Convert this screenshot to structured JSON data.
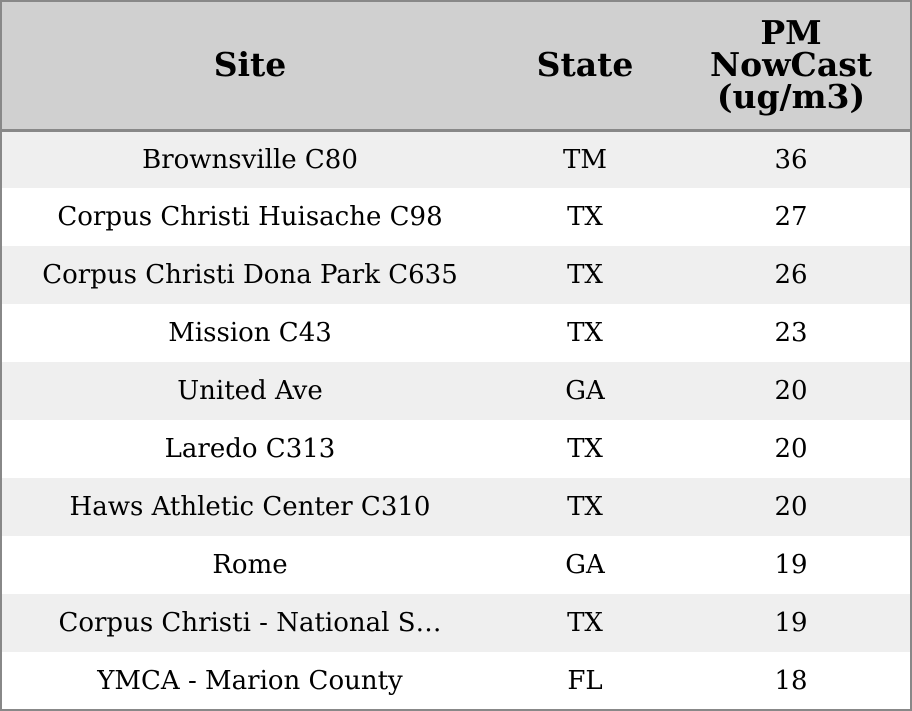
{
  "chart_data": {
    "type": "table",
    "columns": [
      "Site",
      "State",
      "PM NowCast (ug/m3)"
    ],
    "header_lines": {
      "site": [
        "Site"
      ],
      "state": [
        "State"
      ],
      "pm": [
        "PM",
        "NowCast",
        "(ug/m3)"
      ]
    },
    "rows": [
      {
        "site": "Brownsville C80",
        "state": "TM",
        "pm": "36"
      },
      {
        "site": "Corpus Christi Huisache C98",
        "state": "TX",
        "pm": "27"
      },
      {
        "site": "Corpus Christi Dona Park C635",
        "state": "TX",
        "pm": "26"
      },
      {
        "site": "Mission C43",
        "state": "TX",
        "pm": "23"
      },
      {
        "site": "United Ave",
        "state": "GA",
        "pm": "20"
      },
      {
        "site": "Laredo C313",
        "state": "TX",
        "pm": "20"
      },
      {
        "site": "Haws Athletic Center C310",
        "state": "TX",
        "pm": "20"
      },
      {
        "site": "Rome",
        "state": "GA",
        "pm": "19"
      },
      {
        "site": "Corpus Christi - National S…",
        "state": "TX",
        "pm": "19"
      },
      {
        "site": "YMCA - Marion County",
        "state": "FL",
        "pm": "18"
      }
    ],
    "colors": {
      "header_background": "#d0d0d0",
      "row_stripe": "#efefef",
      "row_plain": "#ffffff",
      "border": "#888888"
    }
  }
}
